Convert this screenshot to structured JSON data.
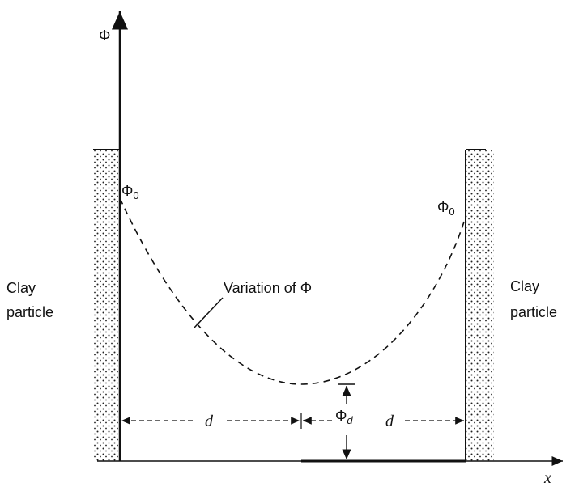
{
  "y_axis_label": "Φ",
  "x_axis_label": "x",
  "left_potential": {
    "symbol": "Φ",
    "subscript": "0"
  },
  "right_potential": {
    "symbol": "Φ",
    "subscript": "0"
  },
  "curve_label": "Variation of Φ",
  "left_particle": [
    "Clay",
    "particle"
  ],
  "right_particle": [
    "Clay",
    "particle"
  ],
  "left_distance": "d",
  "right_distance": "d",
  "midplane_potential": {
    "symbol": "Φ",
    "subscript": "d"
  }
}
